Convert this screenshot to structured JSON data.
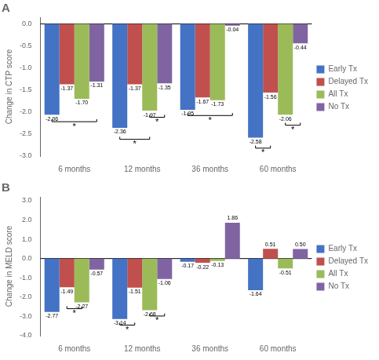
{
  "chart_data": [
    {
      "type": "bar",
      "title": "A",
      "ylabel": "Change in CTP score",
      "categories": [
        "6 months",
        "12 months",
        "36 months",
        "60 months"
      ],
      "series": [
        {
          "name": "Early Tx",
          "color": "#4472C4",
          "values": [
            -2.06,
            -2.36,
            -1.95,
            -2.58
          ],
          "value_labels": [
            "-2.06",
            "-2.36",
            "-1.95",
            "-2.58"
          ]
        },
        {
          "name": "Delayed Tx",
          "color": "#C0504D",
          "values": [
            -1.37,
            -1.37,
            -1.67,
            -1.56
          ],
          "value_labels": [
            "-1.37",
            "-1.37",
            "-1.67",
            "-1.56"
          ]
        },
        {
          "name": "All Tx",
          "color": "#9BBB59",
          "values": [
            -1.7,
            -1.97,
            -1.73,
            -2.06
          ],
          "value_labels": [
            "-1.70",
            "-1.97",
            "-1.73",
            "-2.06"
          ]
        },
        {
          "name": "No Tx",
          "color": "#8064A2",
          "values": [
            -1.31,
            -1.35,
            -0.04,
            -0.44
          ],
          "value_labels": [
            "-1.31",
            "-1.35",
            "-0.04",
            "-0.44"
          ]
        }
      ],
      "ylim": [
        -3.0,
        0.15
      ],
      "yticks": [
        {
          "value": 0.0,
          "label": "0.0"
        },
        -0.5,
        {
          "value": -1.0,
          "label": "-1.0"
        },
        -1.5,
        {
          "value": -2.0,
          "label": "-2.0"
        },
        -2.5,
        {
          "value": -3.0,
          "label": "-3.0"
        }
      ],
      "grid": false,
      "legend": "right",
      "data_labels": true,
      "annotations": [
        {
          "category": "6 months",
          "from": "Early Tx",
          "to": "No Tx",
          "y": -2.22,
          "label": "*"
        },
        {
          "category": "12 months",
          "from": "Early Tx",
          "to": "All Tx",
          "y": -2.62,
          "label": "*"
        },
        {
          "category": "12 months",
          "from": "All Tx",
          "to": "No Tx",
          "y": -2.12,
          "label": "*"
        },
        {
          "category": "36 months",
          "from": "Early Tx",
          "to": "No Tx",
          "y": -2.08,
          "label": "*"
        },
        {
          "category": "60 months",
          "from": "Early Tx",
          "to": "Delayed Tx",
          "y": -2.82,
          "label": "*"
        },
        {
          "category": "60 months",
          "from": "All Tx",
          "to": "No Tx",
          "y": -2.3,
          "label": "*"
        }
      ]
    },
    {
      "type": "bar",
      "title": "B",
      "ylabel": "Change in MELD score",
      "categories": [
        "6 months",
        "12 months",
        "36 months",
        "60 months"
      ],
      "series": [
        {
          "name": "Early Tx",
          "color": "#4472C4",
          "values": [
            -2.77,
            -3.14,
            -0.17,
            -1.64
          ],
          "value_labels": [
            "-2.77",
            "-3.14",
            "-0.17",
            "-1.64"
          ]
        },
        {
          "name": "Delayed Tx",
          "color": "#C0504D",
          "values": [
            -1.49,
            -1.51,
            -0.22,
            0.51
          ],
          "value_labels": [
            "-1.49",
            "-1.51",
            "-0.22",
            "0.51"
          ]
        },
        {
          "name": "All Tx",
          "color": "#9BBB59",
          "values": [
            -2.27,
            -2.68,
            -0.13,
            -0.51
          ],
          "value_labels": [
            "-2.27",
            "-2.68",
            "-0.13",
            "-0.51"
          ]
        },
        {
          "name": "No Tx",
          "color": "#8064A2",
          "values": [
            -0.57,
            -1.06,
            1.86,
            0.5
          ],
          "value_labels": [
            "-0.57",
            "-1.06",
            "1.86",
            "0.50"
          ]
        }
      ],
      "ylim": [
        -4.0,
        3.2
      ],
      "yticks": [
        {
          "value": 3.0,
          "label": "3.0"
        },
        {
          "value": 2.0,
          "label": "2.0"
        },
        {
          "value": 1.0,
          "label": "1.0"
        },
        {
          "value": 0.0,
          "label": "0.0"
        },
        {
          "value": -1.0,
          "label": "-1.0"
        },
        {
          "value": -2.0,
          "label": "-2.0"
        },
        {
          "value": -3.0,
          "label": "-3.0"
        },
        {
          "value": -4.0,
          "label": "-4.0"
        }
      ],
      "grid": false,
      "legend": "right",
      "data_labels": true,
      "annotations": [
        {
          "category": "6 months",
          "from": "Delayed Tx",
          "to": "All Tx",
          "y": -2.6,
          "label": "*"
        },
        {
          "category": "12 months",
          "from": "Early Tx",
          "to": "Delayed Tx",
          "y": -3.45,
          "label": "*"
        },
        {
          "category": "12 months",
          "from": "All Tx",
          "to": "No Tx",
          "y": -2.98,
          "label": "*"
        }
      ]
    }
  ]
}
